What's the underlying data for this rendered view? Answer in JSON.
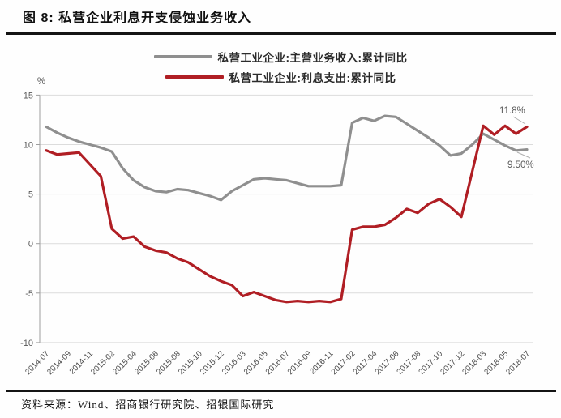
{
  "figure": {
    "title": "图 8: 私营企业利息开支侵蚀业务收入",
    "source": "资料来源：Wind、招商银行研究院、招银国际研究"
  },
  "legend": [
    {
      "label": "私营工业企业:主营业务收入:累计同比",
      "color": "#8f8f8f"
    },
    {
      "label": "私营工业企业:利息支出:累计同比",
      "color": "#b01e24"
    }
  ],
  "colors": {
    "grid": "#dcdcdc",
    "axis": "#9e9e9e",
    "tick_text": "#595959",
    "x_tick_text": "#4d4d4d",
    "annotation_text": "#595959",
    "leader_line": "#b0b0b0",
    "revenue_line": "#8f8f8f",
    "interest_line": "#b01e24"
  },
  "chart_data": {
    "type": "line",
    "unit_label": "%",
    "ylim": [
      -10,
      15
    ],
    "yticks": [
      15,
      10,
      5,
      0,
      -5,
      -10
    ],
    "grid": true,
    "legend_position": "top",
    "x": [
      "2014-07",
      "2014-08",
      "2014-09",
      "2014-10",
      "2014-11",
      "2014-12",
      "2015-02",
      "2015-03",
      "2015-04",
      "2015-05",
      "2015-06",
      "2015-07",
      "2015-08",
      "2015-09",
      "2015-10",
      "2015-11",
      "2015-12",
      "2016-02",
      "2016-03",
      "2016-04",
      "2016-05",
      "2016-06",
      "2016-07",
      "2016-08",
      "2016-09",
      "2016-10",
      "2016-11",
      "2016-12",
      "2017-02",
      "2017-03",
      "2017-04",
      "2017-05",
      "2017-06",
      "2017-07",
      "2017-08",
      "2017-09",
      "2017-10",
      "2017-11",
      "2017-12",
      "2018-02",
      "2018-03",
      "2018-04",
      "2018-05",
      "2018-06",
      "2018-07"
    ],
    "x_tick_labels": [
      "2014-07",
      "2014-09",
      "2014-11",
      "2015-02",
      "2015-04",
      "2015-06",
      "2015-08",
      "2015-10",
      "2015-12",
      "2016-03",
      "2016-05",
      "2016-07",
      "2016-09",
      "2016-11",
      "2017-02",
      "2017-04",
      "2017-06",
      "2017-08",
      "2017-10",
      "2017-12",
      "2018-03",
      "2018-05",
      "2018-07"
    ],
    "series": [
      {
        "name": "私营工业企业:主营业务收入:累计同比",
        "color": "#8f8f8f",
        "values": [
          11.8,
          11.2,
          10.7,
          10.3,
          10.0,
          9.7,
          9.3,
          7.6,
          6.4,
          5.7,
          5.3,
          5.2,
          5.5,
          5.4,
          5.1,
          4.8,
          4.4,
          5.3,
          5.9,
          6.5,
          6.6,
          6.5,
          6.4,
          6.1,
          5.8,
          5.8,
          5.8,
          5.9,
          12.2,
          12.7,
          12.4,
          12.9,
          12.8,
          12.1,
          11.4,
          10.7,
          9.9,
          8.9,
          9.1,
          10.0,
          11.1,
          10.5,
          9.9,
          9.4,
          9.5
        ]
      },
      {
        "name": "私营工业企业:利息支出:累计同比",
        "color": "#b01e24",
        "values": [
          9.4,
          9.0,
          9.1,
          9.2,
          8.0,
          6.8,
          1.5,
          0.5,
          0.7,
          -0.3,
          -0.7,
          -0.9,
          -1.5,
          -1.9,
          -2.6,
          -3.3,
          -3.8,
          -4.2,
          -5.3,
          -4.9,
          -5.3,
          -5.7,
          -5.9,
          -5.8,
          -5.9,
          -5.8,
          -5.9,
          -5.6,
          1.4,
          1.7,
          1.7,
          1.9,
          2.6,
          3.5,
          3.1,
          4.0,
          4.5,
          3.7,
          2.7,
          7.3,
          11.9,
          11.0,
          11.9,
          11.1,
          11.8
        ]
      }
    ],
    "annotations": [
      {
        "text": "11.8%",
        "series": "私营工业企业:利息支出:累计同比",
        "x": "2018-07",
        "value": 11.8
      },
      {
        "text": "9.50%",
        "series": "私营工业企业:主营业务收入:累计同比",
        "x": "2018-07",
        "value": 9.5
      }
    ]
  }
}
